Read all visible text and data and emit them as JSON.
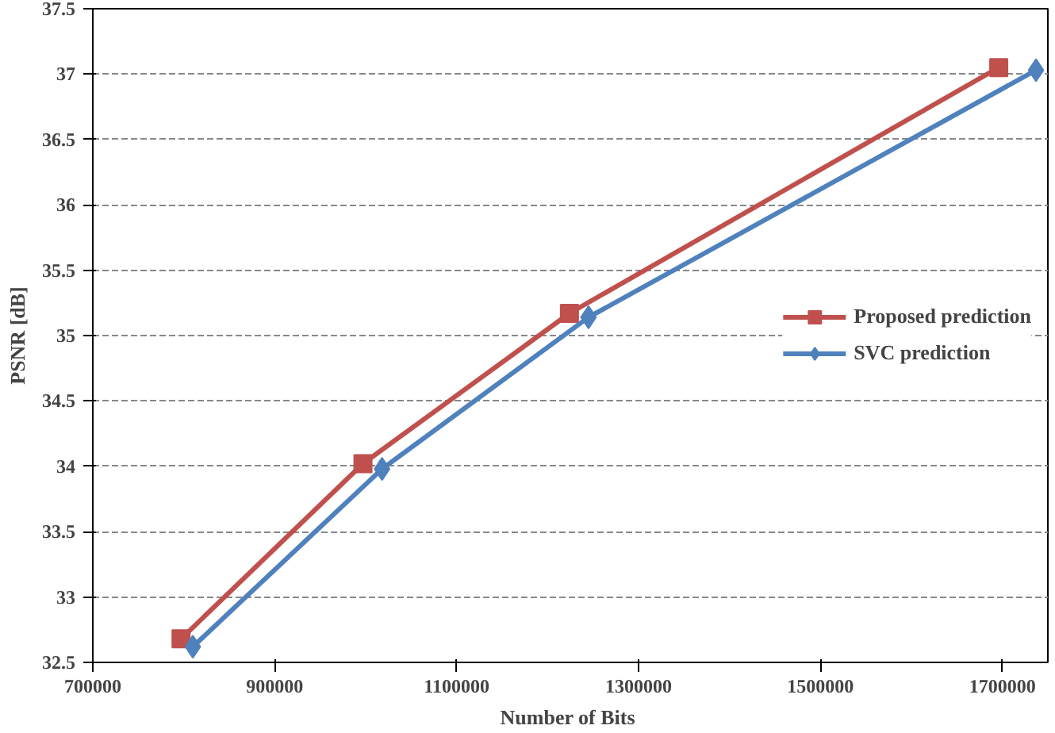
{
  "chart_data": {
    "type": "line",
    "xlabel": "Number  of Bits",
    "ylabel": "PSNR [dB]",
    "xlim": [
      700000,
      1750000
    ],
    "xticks": [
      700000,
      900000,
      1100000,
      1300000,
      1500000,
      1700000
    ],
    "ylim": [
      32.5,
      37.5
    ],
    "yticks": [
      32.5,
      33,
      33.5,
      34,
      34.5,
      35,
      35.5,
      36,
      36.5,
      37,
      37.5
    ],
    "grid": "y",
    "legend": "right",
    "line_style": "solid",
    "series": [
      {
        "name": "Proposed prediction",
        "color": "#c0504d",
        "marker": "square",
        "x": [
          797000,
          997000,
          1224000,
          1696000
        ],
        "values": [
          32.68,
          34.02,
          35.17,
          37.05
        ]
      },
      {
        "name": "SVC prediction",
        "color": "#4f81bd",
        "marker": "diamond",
        "x": [
          810000,
          1018000,
          1245000,
          1737000
        ],
        "values": [
          32.62,
          33.98,
          35.14,
          37.03
        ]
      }
    ]
  }
}
